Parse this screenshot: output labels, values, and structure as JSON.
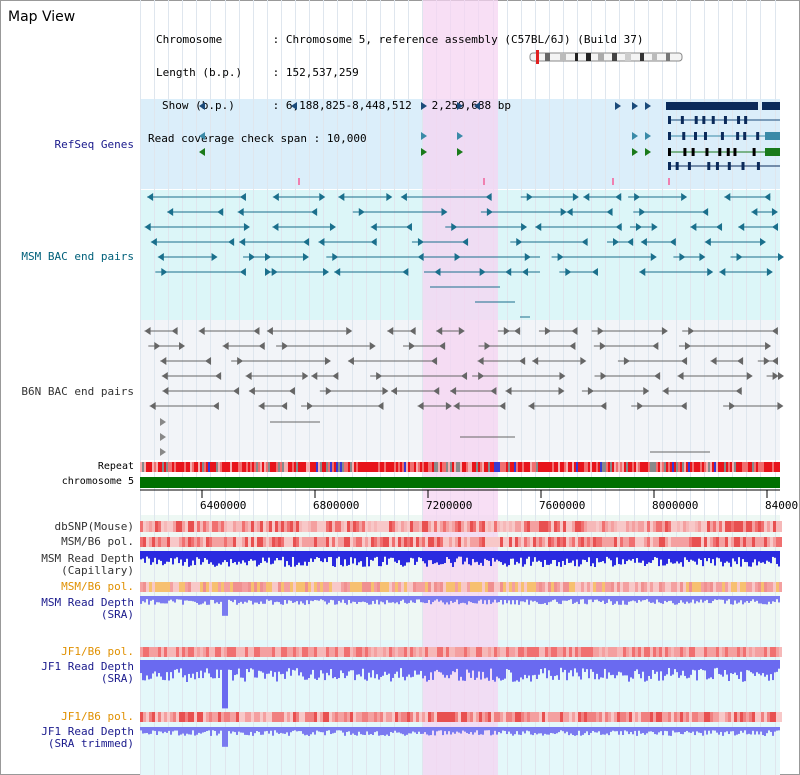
{
  "title": "Map View",
  "info": {
    "chromosome_key": "Chromosome",
    "chromosome_value": "Chromosome 5, reference assembly (C57BL/6J) (Build 37)",
    "length_key": "Length (b.p.)",
    "length_value": "152,537,259",
    "show_key": "Show (b.p.)",
    "show_value": "6,188,825-8,448,512 : 2,259,688 bp",
    "coverage_key": "Read coverage check span",
    "coverage_value": "10,000"
  },
  "tracks": {
    "refseq": "RefSeq Genes",
    "msm_bac": "MSM BAC end pairs",
    "b6n_bac": "B6N BAC end pairs",
    "repeat": "Repeat",
    "chromosome": "chromosome 5",
    "dbsnp": "dbSNP(Mouse)",
    "msm_b6_pol_1": "MSM/B6 pol.",
    "msm_read_depth_cap_1": "MSM Read Depth",
    "msm_read_depth_cap_2": "(Capillary)",
    "msm_b6_pol_2": "MSM/B6 pol.",
    "msm_read_depth_sra_1": "MSM Read Depth",
    "msm_read_depth_sra_2": "(SRA)",
    "jf1_b6_pol_1": "JF1/B6 pol.",
    "jf1_read_depth_1": "JF1 Read Depth",
    "jf1_read_depth_2": "(SRA)",
    "jf1_b6_pol_2": "JF1/B6 pol.",
    "jf1_trim_1": "JF1 Read Depth",
    "jf1_trim_2": "(SRA trimmed)"
  },
  "axis": {
    "ticks": [
      "6400000",
      "6800000",
      "7200000",
      "7600000",
      "8000000",
      "84000"
    ]
  },
  "colors": {
    "refseq_bg": "#dbeefa",
    "msm_bg": "#dcf6f8",
    "highlight": "#f5d4f2",
    "label_blue": "#1a1a8c",
    "label_teal": "#00607a",
    "label_gray": "#333333",
    "label_orange": "#e09000",
    "gene_navy": "#0b2a5a",
    "gene_green": "#1a7a1a",
    "msm_bac": "#1a6f8c",
    "depth_blue": "#2a2ae0",
    "chromosome_green": "#007000"
  }
}
